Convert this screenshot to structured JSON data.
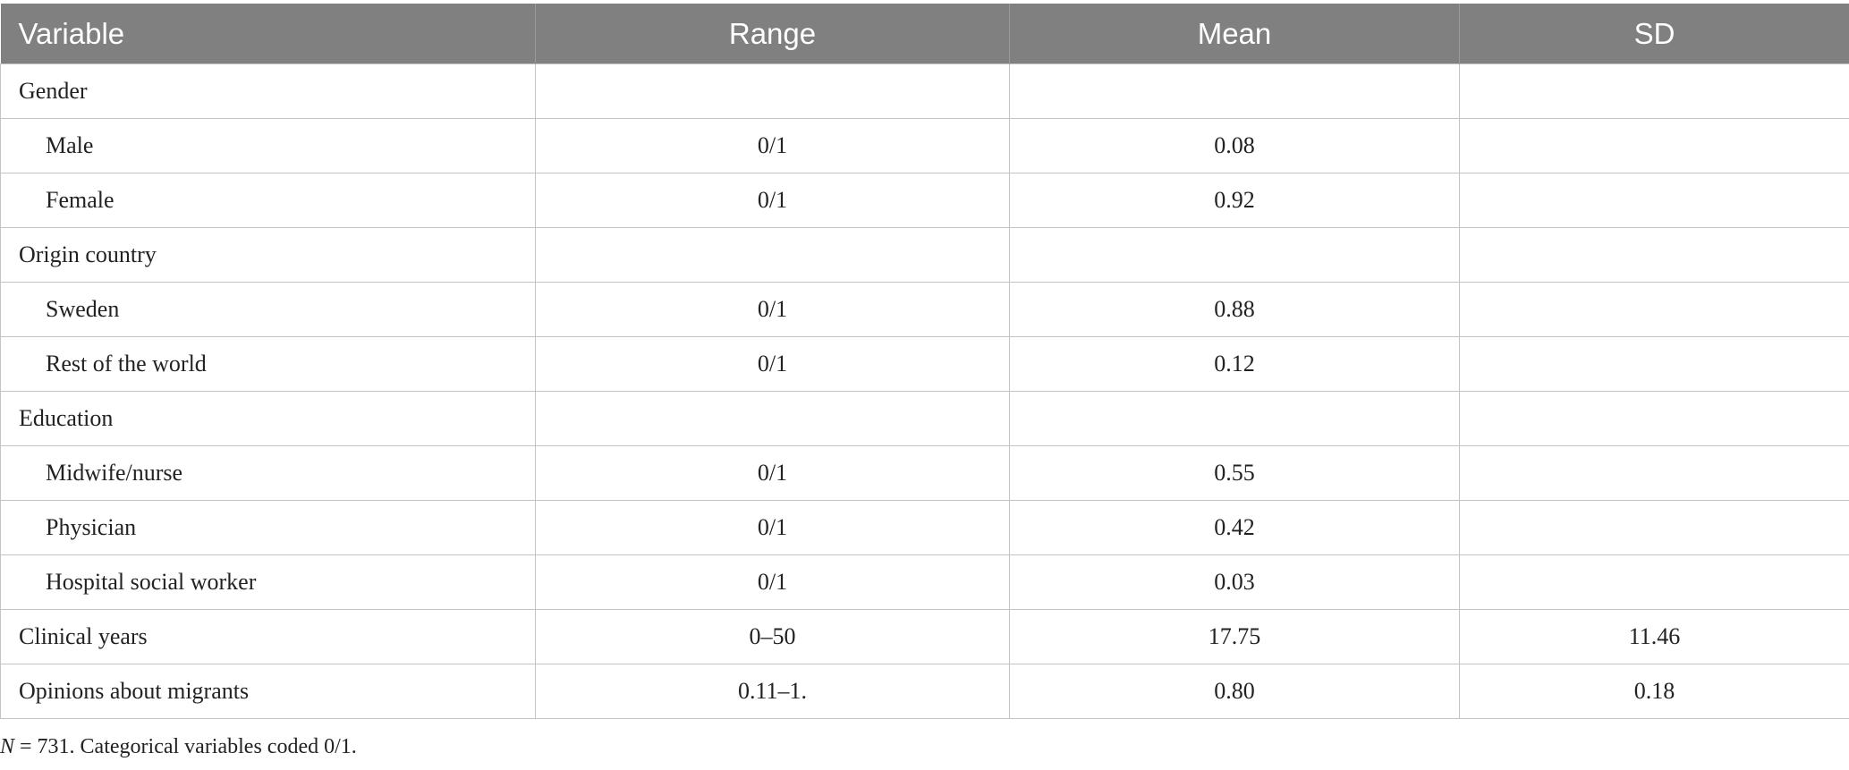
{
  "table": {
    "headers": [
      "Variable",
      "Range",
      "Mean",
      "SD"
    ],
    "rows": [
      {
        "variable": "Gender",
        "range": "",
        "mean": "",
        "sd": ""
      },
      {
        "variable": "Male",
        "range": "0/1",
        "mean": "0.08",
        "sd": ""
      },
      {
        "variable": "Female",
        "range": "0/1",
        "mean": "0.92",
        "sd": ""
      },
      {
        "variable": "Origin country",
        "range": "",
        "mean": "",
        "sd": ""
      },
      {
        "variable": "Sweden",
        "range": "0/1",
        "mean": "0.88",
        "sd": ""
      },
      {
        "variable": "Rest of the world",
        "range": "0/1",
        "mean": "0.12",
        "sd": ""
      },
      {
        "variable": "Education",
        "range": "",
        "mean": "",
        "sd": ""
      },
      {
        "variable": "Midwife/nurse",
        "range": "0/1",
        "mean": "0.55",
        "sd": ""
      },
      {
        "variable": "Physician",
        "range": "0/1",
        "mean": "0.42",
        "sd": ""
      },
      {
        "variable": "Hospital social worker",
        "range": "0/1",
        "mean": "0.03",
        "sd": ""
      },
      {
        "variable": "Clinical years",
        "range": "0–50",
        "mean": "17.75",
        "sd": "11.46"
      },
      {
        "variable": "Opinions about migrants",
        "range": "0.11–1.",
        "mean": "0.80",
        "sd": "0.18"
      }
    ]
  },
  "footnote": {
    "n_label": "N",
    "text": " = 731. Categorical variables coded 0/1."
  }
}
